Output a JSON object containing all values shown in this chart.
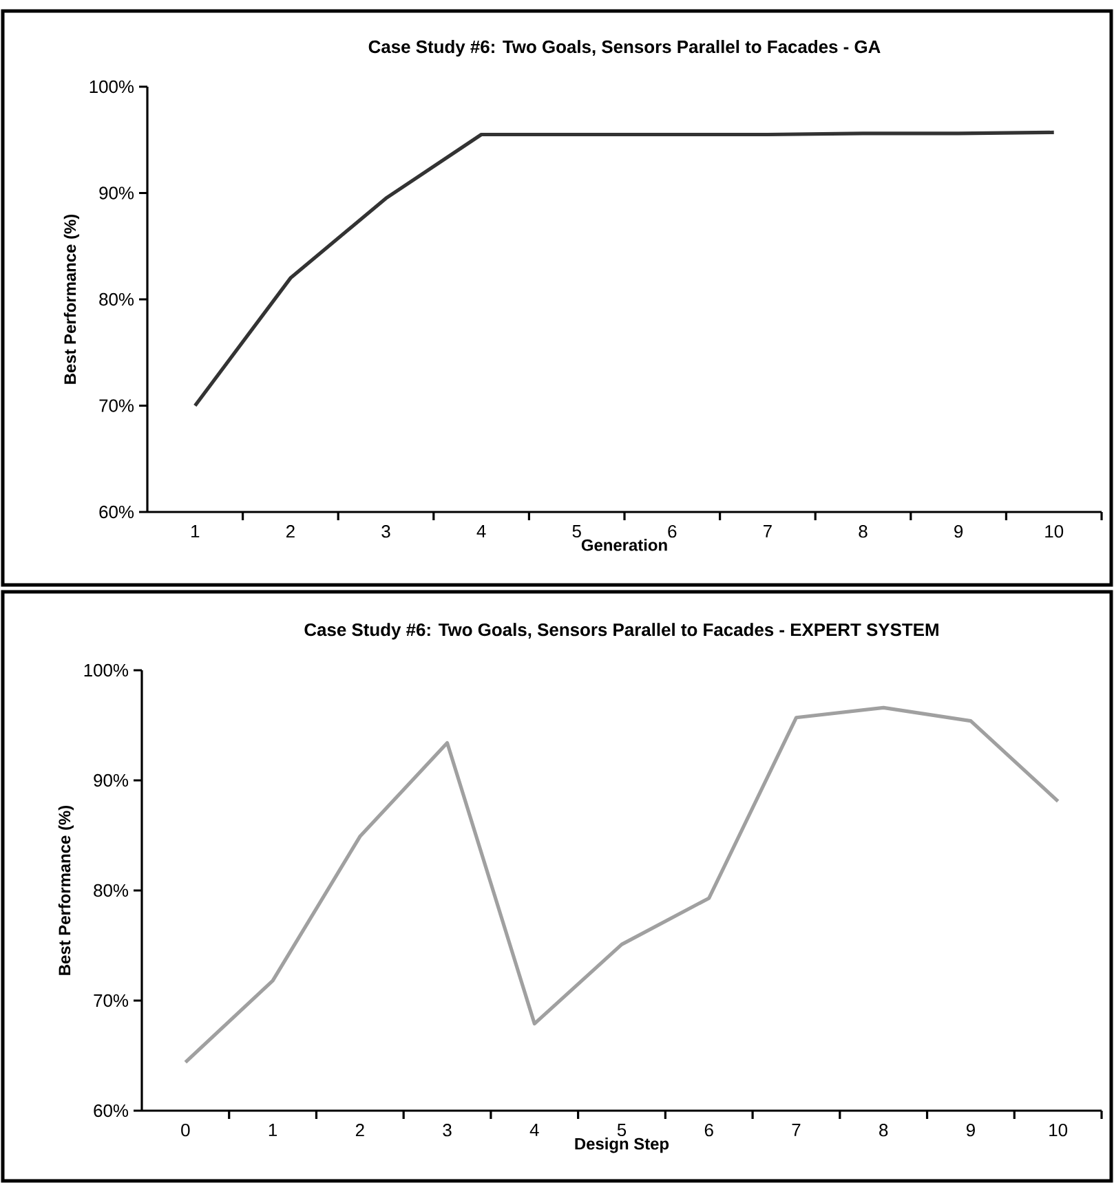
{
  "chart_data": [
    {
      "type": "line",
      "title": "Case Study #6: Two Goals, Sensors Parallel to Facades - GA",
      "xlabel": "Generation",
      "ylabel": "Best Performance (%)",
      "categories": [
        "1",
        "2",
        "3",
        "4",
        "5",
        "6",
        "7",
        "8",
        "9",
        "10"
      ],
      "series": [
        {
          "color": "#333333",
          "values": [
            70,
            82,
            89.5,
            95.5,
            95.5,
            95.5,
            95.5,
            95.6,
            95.6,
            95.7
          ]
        }
      ],
      "ylim": [
        60,
        100
      ],
      "yticks": [
        {
          "value": 60,
          "label": "60%"
        },
        {
          "value": 70,
          "label": "70%"
        },
        {
          "value": 80,
          "label": "80%"
        },
        {
          "value": 90,
          "label": "90%"
        },
        {
          "value": 100,
          "label": "100%"
        }
      ],
      "grid": false,
      "marker": "none",
      "line_style": "solid"
    },
    {
      "type": "line",
      "title": "Case Study #6: Two Goals, Sensors Parallel to Facades - EXPERT SYSTEM",
      "xlabel": "Design Step",
      "ylabel": "Best Performance (%)",
      "categories": [
        "0",
        "1",
        "2",
        "3",
        "4",
        "5",
        "6",
        "7",
        "8",
        "9",
        "10"
      ],
      "series": [
        {
          "color": "#a0a0a0",
          "values": [
            64.4,
            71.8,
            84.9,
            93.4,
            67.9,
            75.1,
            79.3,
            95.7,
            96.6,
            95.4,
            88.1
          ]
        }
      ],
      "ylim": [
        60,
        100
      ],
      "yticks": [
        {
          "value": 60,
          "label": "60%"
        },
        {
          "value": 70,
          "label": "70%"
        },
        {
          "value": 80,
          "label": "80%"
        },
        {
          "value": 90,
          "label": "90%"
        },
        {
          "value": 100,
          "label": "100%"
        }
      ],
      "grid": false,
      "marker": "none",
      "line_style": "solid"
    }
  ]
}
